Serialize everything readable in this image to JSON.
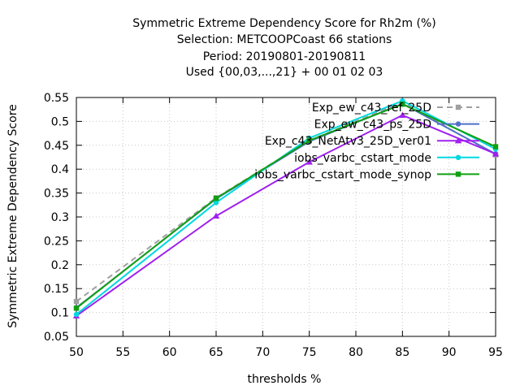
{
  "chart_data": {
    "type": "line",
    "title_lines": [
      "Symmetric Extreme Dependency Score  for Rh2m (%)",
      "Selection: METCOOPCoast     66 stations",
      "Period: 20190801-20190811",
      "Used {00,03,...,21} + 00 01 02 03"
    ],
    "xlabel": "thresholds %",
    "ylabel": "Symmetric Extreme Dependency Score",
    "xlim": [
      50,
      95
    ],
    "ylim": [
      0.05,
      0.55
    ],
    "xticks": [
      50,
      55,
      60,
      65,
      70,
      75,
      80,
      85,
      90,
      95
    ],
    "yticks": [
      0.05,
      0.1,
      0.15,
      0.2,
      0.25,
      0.3,
      0.35,
      0.4,
      0.45,
      0.5,
      0.55
    ],
    "ytick_labels": [
      "0.05",
      "0.1",
      "0.15",
      "0.2",
      "0.25",
      "0.3",
      "0.35",
      "0.4",
      "0.45",
      "0.5",
      "0.55"
    ],
    "grid": true,
    "legend_position": "top-right",
    "x": [
      50,
      65,
      75,
      85,
      95
    ],
    "series": [
      {
        "name": "Exp_ew_c43_ref_25D",
        "color": "#a0a0a0",
        "dashed": true,
        "marker": "square",
        "values": [
          0.123,
          0.34,
          0.46,
          0.54,
          0.43
        ]
      },
      {
        "name": "Exp_ew_c43_ps_25D",
        "color": "#5070c8",
        "dashed": false,
        "marker": "circle",
        "values": [
          0.11,
          0.338,
          0.458,
          0.537,
          0.432
        ]
      },
      {
        "name": "Exp_c43_NetAtv3_25D_ver01",
        "color": "#a020f0",
        "dashed": false,
        "marker": "triangle",
        "values": [
          0.093,
          0.302,
          0.415,
          0.513,
          0.432
        ]
      },
      {
        "name": "iobs_varbc_cstart_mode",
        "color": "#00d8e0",
        "dashed": false,
        "marker": "circle",
        "values": [
          0.096,
          0.33,
          0.465,
          0.543,
          0.442
        ]
      },
      {
        "name": "iobs_varbc_cstart_mode_synop",
        "color": "#10a010",
        "dashed": false,
        "marker": "square",
        "values": [
          0.109,
          0.339,
          0.46,
          0.536,
          0.447
        ]
      }
    ]
  }
}
